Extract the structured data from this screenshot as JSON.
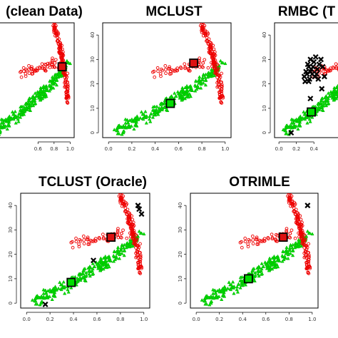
{
  "chart_data": [
    {
      "type": "scatter",
      "title": "(clean Data)",
      "xlim": [
        -0.05,
        1.05
      ],
      "ylim": [
        -2,
        45
      ],
      "x_ticks": [
        "0.6",
        "0.8",
        "1.0"
      ],
      "x_tick_values": [
        0.6,
        0.8,
        1.0
      ],
      "y_ticks": [],
      "y_tick_values": [],
      "centers": [
        {
          "cluster": "red",
          "x": 0.9,
          "y": 27
        }
      ],
      "crosses": []
    },
    {
      "type": "scatter",
      "title": "MCLUST",
      "xlim": [
        -0.05,
        1.05
      ],
      "ylim": [
        -2,
        45
      ],
      "x_ticks": [
        "0.0",
        "0.2",
        "0.4",
        "0.6",
        "0.8",
        "1.0"
      ],
      "x_tick_values": [
        0,
        0.2,
        0.4,
        0.6,
        0.8,
        1.0
      ],
      "y_ticks": [
        "0",
        "10",
        "20",
        "30",
        "40"
      ],
      "y_tick_values": [
        0,
        10,
        20,
        30,
        40
      ],
      "centers": [
        {
          "cluster": "red",
          "x": 0.73,
          "y": 28.5
        },
        {
          "cluster": "green",
          "x": 0.53,
          "y": 12
        }
      ],
      "crosses": []
    },
    {
      "type": "scatter",
      "title": "RMBC (T",
      "xlim": [
        -0.05,
        1.05
      ],
      "ylim": [
        -2,
        45
      ],
      "x_ticks": [
        "0.0",
        "0.2",
        "0.4"
      ],
      "x_tick_values": [
        0,
        0.2,
        0.4
      ],
      "y_ticks": [
        "0",
        "10",
        "20",
        "30",
        "40"
      ],
      "y_tick_values": [
        0,
        10,
        20,
        30,
        40
      ],
      "centers": [
        {
          "cluster": "green",
          "x": 0.37,
          "y": 8.5
        }
      ],
      "crosses": [
        {
          "x": 0.36,
          "y": 30
        },
        {
          "x": 0.4,
          "y": 29
        },
        {
          "x": 0.34,
          "y": 27
        },
        {
          "x": 0.42,
          "y": 31
        },
        {
          "x": 0.31,
          "y": 25
        },
        {
          "x": 0.38,
          "y": 24
        },
        {
          "x": 0.44,
          "y": 26
        },
        {
          "x": 0.35,
          "y": 22
        },
        {
          "x": 0.29,
          "y": 23
        },
        {
          "x": 0.41,
          "y": 23
        },
        {
          "x": 0.33,
          "y": 28
        },
        {
          "x": 0.46,
          "y": 28
        },
        {
          "x": 0.39,
          "y": 27
        },
        {
          "x": 0.37,
          "y": 26
        },
        {
          "x": 0.32,
          "y": 24
        },
        {
          "x": 0.43,
          "y": 24
        },
        {
          "x": 0.3,
          "y": 21
        },
        {
          "x": 0.45,
          "y": 22
        },
        {
          "x": 0.48,
          "y": 30
        },
        {
          "x": 0.36,
          "y": 25
        },
        {
          "x": 0.5,
          "y": 27
        },
        {
          "x": 0.34,
          "y": 21
        },
        {
          "x": 0.36,
          "y": 14
        },
        {
          "x": 0.49,
          "y": 18
        },
        {
          "x": 0.52,
          "y": 23
        },
        {
          "x": 0.14,
          "y": 0
        }
      ]
    },
    {
      "type": "scatter",
      "title": "TCLUST (Oracle)",
      "xlim": [
        -0.05,
        1.05
      ],
      "ylim": [
        -2,
        45
      ],
      "x_ticks": [
        "0.0",
        "0.2",
        "0.4",
        "0.6",
        "0.8",
        "1.0"
      ],
      "x_tick_values": [
        0,
        0.2,
        0.4,
        0.6,
        0.8,
        1.0
      ],
      "y_ticks": [
        "0",
        "10",
        "20",
        "30",
        "40"
      ],
      "y_tick_values": [
        0,
        10,
        20,
        30,
        40
      ],
      "centers": [
        {
          "cluster": "red",
          "x": 0.72,
          "y": 27
        },
        {
          "cluster": "green",
          "x": 0.38,
          "y": 8.5
        }
      ],
      "crosses": [
        {
          "x": 0.95,
          "y": 40
        },
        {
          "x": 0.96,
          "y": 38.5
        },
        {
          "x": 0.98,
          "y": 36.5
        },
        {
          "x": 0.57,
          "y": 17.5
        },
        {
          "x": 0.16,
          "y": -0.5
        }
      ]
    },
    {
      "type": "scatter",
      "title": "OTRIMLE",
      "xlim": [
        -0.05,
        1.05
      ],
      "ylim": [
        -2,
        45
      ],
      "x_ticks": [
        "0.0",
        "0.2",
        "0.4",
        "0.6",
        "0.8",
        "1.0"
      ],
      "x_tick_values": [
        0,
        0.2,
        0.4,
        0.6,
        0.8,
        1.0
      ],
      "y_ticks": [
        "0",
        "10",
        "20",
        "30",
        "40"
      ],
      "y_tick_values": [
        0,
        10,
        20,
        30,
        40
      ],
      "centers": [
        {
          "cluster": "red",
          "x": 0.75,
          "y": 27
        },
        {
          "cluster": "green",
          "x": 0.45,
          "y": 10
        }
      ],
      "crosses": [
        {
          "x": 0.96,
          "y": 40
        }
      ]
    }
  ]
}
